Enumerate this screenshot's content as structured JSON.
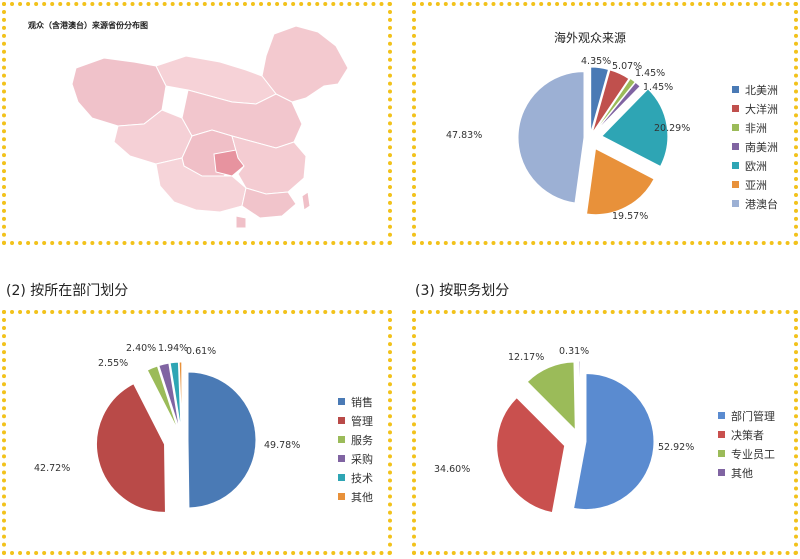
{
  "map_panel": {
    "title": "观众（含港澳台）来源省份分布图"
  },
  "section_labels": {
    "department": "(2) 按所在部门划分",
    "position": "(3) 按职务划分"
  },
  "chart_data": [
    {
      "id": "overseas",
      "type": "pie",
      "title": "海外观众来源",
      "unit": "%",
      "slices": [
        {
          "label": "北美洲",
          "value": 4.35,
          "display": "4.35%",
          "color": "#4a7ab5"
        },
        {
          "label": "大洋洲",
          "value": 5.07,
          "display": "5.07%",
          "color": "#c0504d"
        },
        {
          "label": "非洲",
          "value": 1.45,
          "display": "1.45%",
          "color": "#9bbb59"
        },
        {
          "label": "南美洲",
          "value": 1.45,
          "display": "1.45%",
          "color": "#8064a2"
        },
        {
          "label": "欧洲",
          "value": 20.29,
          "display": "20.29%",
          "color": "#2ea5b4"
        },
        {
          "label": "亚洲",
          "value": 19.57,
          "display": "19.57%",
          "color": "#e8913a"
        },
        {
          "label": "港澳台",
          "value": 47.83,
          "display": "47.83%",
          "color": "#9cb0d4"
        }
      ],
      "legend_position": "right"
    },
    {
      "id": "department",
      "type": "pie",
      "title": "",
      "unit": "%",
      "slices": [
        {
          "label": "销售",
          "value": 49.78,
          "display": "49.78%",
          "color": "#4a7ab5"
        },
        {
          "label": "管理",
          "value": 42.72,
          "display": "42.72%",
          "color": "#b94a48"
        },
        {
          "label": "服务",
          "value": 2.55,
          "display": "2.55%",
          "color": "#9bbb59"
        },
        {
          "label": "采购",
          "value": 2.4,
          "display": "2.40%",
          "color": "#8064a2"
        },
        {
          "label": "技术",
          "value": 1.94,
          "display": "1.94%",
          "color": "#2ea5b4"
        },
        {
          "label": "其他",
          "value": 0.61,
          "display": "0.61%",
          "color": "#e8913a"
        }
      ],
      "legend_position": "right"
    },
    {
      "id": "position",
      "type": "pie",
      "title": "",
      "unit": "%",
      "slices": [
        {
          "label": "部门管理",
          "value": 52.92,
          "display": "52.92%",
          "color": "#5a8bd0"
        },
        {
          "label": "决策者",
          "value": 34.6,
          "display": "34.60%",
          "color": "#c9504e"
        },
        {
          "label": "专业员工",
          "value": 12.17,
          "display": "12.17%",
          "color": "#9bbb59"
        },
        {
          "label": "其他",
          "value": 0.31,
          "display": "0.31%",
          "color": "#8064a2"
        }
      ],
      "legend_position": "right"
    }
  ]
}
